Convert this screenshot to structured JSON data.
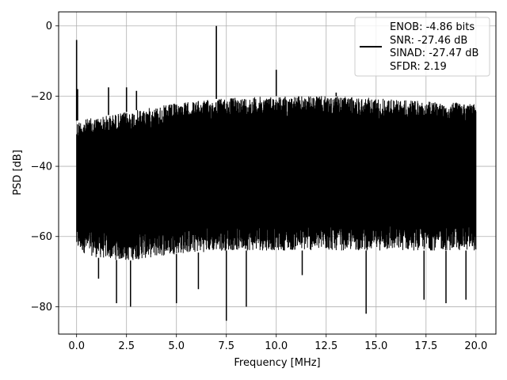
{
  "chart_data": {
    "type": "line",
    "title": "",
    "xlabel": "Frequency [MHz]",
    "ylabel": "PSD [dB]",
    "xlim": [
      -0.9,
      21.0
    ],
    "ylim": [
      -87.8,
      4.0
    ],
    "xticks": [
      0.0,
      2.5,
      5.0,
      7.5,
      10.0,
      12.5,
      15.0,
      17.5,
      20.0
    ],
    "xtick_labels": [
      "0.0",
      "2.5",
      "5.0",
      "7.5",
      "10.0",
      "12.5",
      "15.0",
      "17.5",
      "20.0"
    ],
    "yticks": [
      0,
      -20,
      -40,
      -60,
      -80
    ],
    "ytick_labels": [
      "0",
      "−20",
      "−40",
      "−60",
      "−80"
    ],
    "grid": true,
    "line_color": "#000000",
    "legend": {
      "placement": "upper right",
      "entries": [
        "ENOB: -4.86 bits",
        "SNR: -27.46 dB",
        "SINAD: -27.47 dB",
        "SFDR: 2.19"
      ]
    },
    "series": [
      {
        "noise_band": {
          "x": [
            0.0,
            1.0,
            2.5,
            5.0,
            7.5,
            10.0,
            12.5,
            15.0,
            17.5,
            20.0
          ],
          "upper_envelope": [
            -27.0,
            -26.0,
            -24.5,
            -22.0,
            -20.5,
            -20.0,
            -20.0,
            -20.5,
            -21.5,
            -22.0
          ],
          "lower_envelope": [
            -64.0,
            -66.0,
            -67.0,
            -65.0,
            -64.0,
            -64.0,
            -64.0,
            -64.0,
            -64.0,
            -64.0
          ],
          "deep_notches": [
            {
              "x": 1.1,
              "y": -72
            },
            {
              "x": 2.0,
              "y": -79
            },
            {
              "x": 2.7,
              "y": -80
            },
            {
              "x": 5.0,
              "y": -79
            },
            {
              "x": 6.1,
              "y": -75
            },
            {
              "x": 7.5,
              "y": -84
            },
            {
              "x": 8.5,
              "y": -80
            },
            {
              "x": 11.3,
              "y": -71
            },
            {
              "x": 14.5,
              "y": -82
            },
            {
              "x": 17.4,
              "y": -78
            },
            {
              "x": 18.5,
              "y": -79
            },
            {
              "x": 19.5,
              "y": -78
            }
          ]
        },
        "peaks": [
          {
            "x": 0.0,
            "y": -4.0
          },
          {
            "x": 0.05,
            "y": -18.0
          },
          {
            "x": 1.6,
            "y": -17.5
          },
          {
            "x": 2.5,
            "y": -17.5
          },
          {
            "x": 3.0,
            "y": -18.5
          },
          {
            "x": 7.0,
            "y": 0.0
          },
          {
            "x": 10.0,
            "y": -12.5
          },
          {
            "x": 13.0,
            "y": -19.0
          }
        ]
      }
    ]
  }
}
